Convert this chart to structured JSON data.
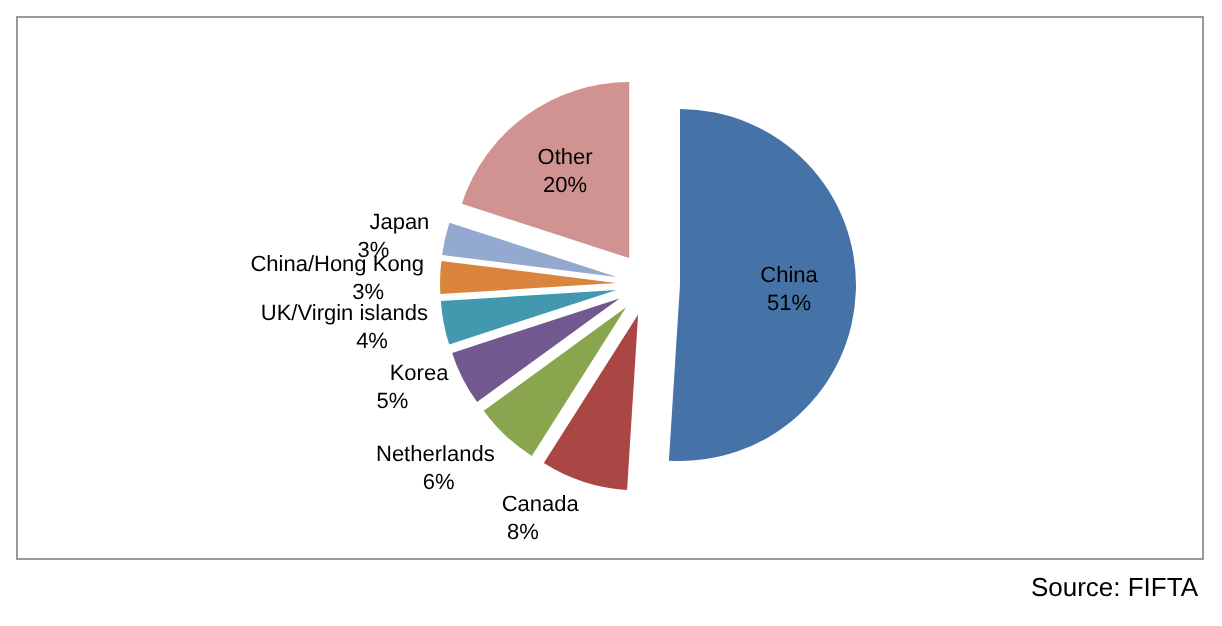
{
  "chart_data": {
    "type": "pie",
    "categories": [
      "China",
      "Canada",
      "Netherlands",
      "Korea",
      "UK/Virgin islands",
      "China/Hong Kong",
      "Japan",
      "Other"
    ],
    "values": [
      51,
      8,
      6,
      5,
      4,
      3,
      3,
      20
    ],
    "colors": [
      "#4572a7",
      "#aa4643",
      "#89a54e",
      "#71588f",
      "#4198af",
      "#db843d",
      "#93a9cf",
      "#d19392"
    ],
    "value_labels": [
      "51%",
      "8%",
      "6%",
      "5%",
      "4%",
      "3%",
      "3%",
      "20%"
    ],
    "legend": false,
    "annotations": [
      "Source: FIFTA"
    ]
  }
}
